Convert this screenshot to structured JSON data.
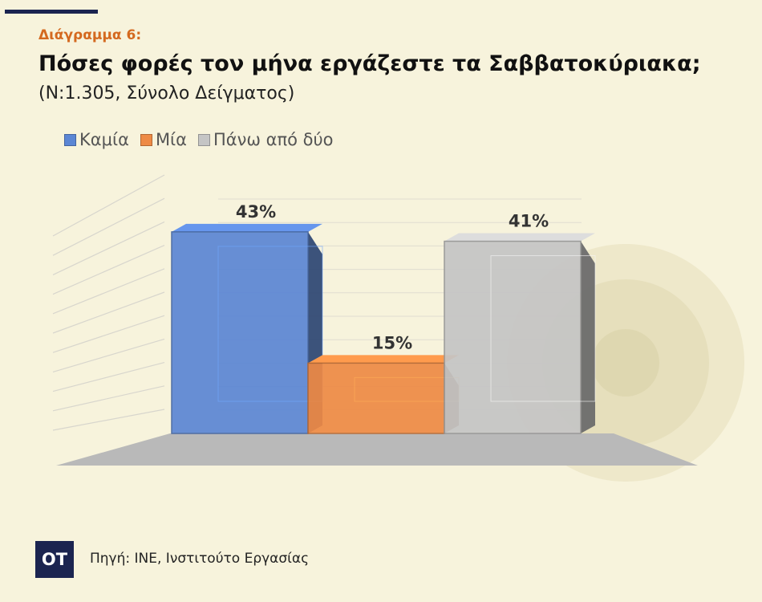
{
  "header": {
    "kicker": "Διάγραμμα 6:",
    "title": "Πόσες φορές τον μήνα εργάζεστε τα Σαββατοκύριακα;",
    "subtitle": "(Ν:1.305, Σύνολο Δείγματος)"
  },
  "footer": {
    "logo_text": "OT",
    "source": "Πηγή: ΙΝΕ, Ινστιτούτο Εργασίας"
  },
  "colors": {
    "background": "#f7f3dc",
    "accent": "#d4691f",
    "brand": "#1b2450"
  },
  "chart_data": {
    "type": "bar",
    "style": "3d",
    "title": "Πόσες φορές τον μήνα εργάζεστε τα Σαββατοκύριακα;",
    "xlabel": "",
    "ylabel": "",
    "ylim": [
      0,
      50
    ],
    "grid": true,
    "legend_position": "top-left",
    "series": [
      {
        "name": "Καμία",
        "value": 43,
        "label": "43%",
        "color": "#5b86d4"
      },
      {
        "name": "Μία",
        "value": 15,
        "label": "15%",
        "color": "#ee8a45"
      },
      {
        "name": "Πάνω από δύο",
        "value": 41,
        "label": "41%",
        "color": "#c5c5c5"
      }
    ]
  }
}
